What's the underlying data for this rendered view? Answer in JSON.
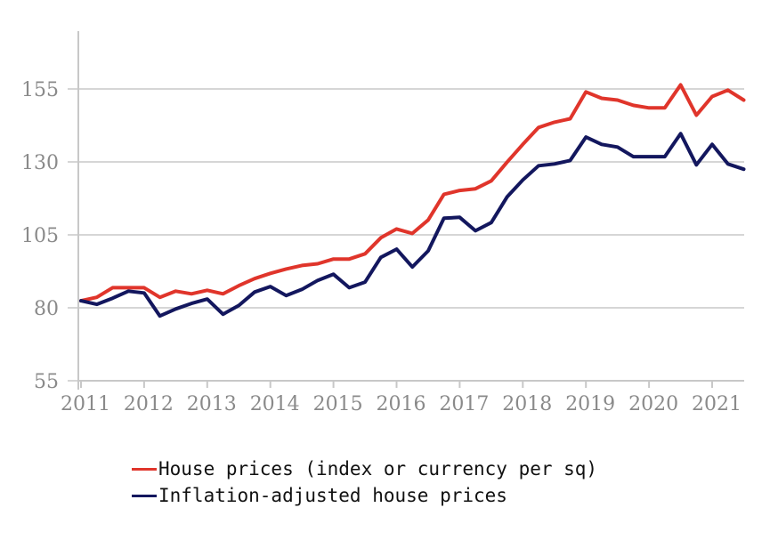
{
  "chart_data": {
    "type": "line",
    "title": "",
    "xlabel": "",
    "ylabel": "",
    "x_ticks": [
      "2011",
      "2012",
      "2013",
      "2014",
      "2015",
      "2016",
      "2017",
      "2018",
      "2019",
      "2020",
      "2021"
    ],
    "y_ticks": [
      55,
      80,
      105,
      130,
      155
    ],
    "xlim": [
      2011,
      2021.5
    ],
    "ylim": [
      55,
      174
    ],
    "grid": "horizontal",
    "legend_position": "bottom",
    "x": [
      2011.0,
      2011.25,
      2011.5,
      2011.75,
      2012.0,
      2012.25,
      2012.5,
      2012.75,
      2013.0,
      2013.25,
      2013.5,
      2013.75,
      2014.0,
      2014.25,
      2014.5,
      2014.75,
      2015.0,
      2015.25,
      2015.5,
      2015.75,
      2016.0,
      2016.25,
      2016.5,
      2016.75,
      2017.0,
      2017.25,
      2017.5,
      2017.75,
      2018.0,
      2018.25,
      2018.5,
      2018.75,
      2019.0,
      2019.25,
      2019.5,
      2019.75,
      2020.0,
      2020.25,
      2020.5,
      2020.75,
      2021.0,
      2021.25,
      2021.5
    ],
    "series": [
      {
        "name": "House prices (index or currency per sq)",
        "color": "#e0352b",
        "values": [
          82.4,
          83.6,
          86.9,
          86.9,
          86.9,
          83.6,
          85.7,
          84.8,
          86.0,
          84.8,
          87.6,
          90.0,
          91.8,
          93.3,
          94.5,
          95.1,
          96.7,
          96.7,
          98.5,
          104.0,
          107.0,
          105.5,
          110.1,
          118.9,
          120.2,
          120.8,
          123.5,
          129.9,
          136.0,
          141.8,
          143.6,
          144.8,
          154.0,
          151.8,
          151.2,
          149.4,
          148.5,
          148.5,
          156.4,
          146.0,
          152.4,
          154.6,
          151.2
        ]
      },
      {
        "name": "Inflation-adjusted house prices",
        "color": "#13175e",
        "values": [
          82.4,
          81.2,
          83.3,
          85.7,
          85.1,
          77.2,
          79.6,
          81.5,
          83.0,
          77.8,
          80.8,
          85.4,
          87.3,
          84.2,
          86.3,
          89.4,
          91.5,
          86.9,
          88.8,
          97.3,
          100.1,
          94.0,
          99.5,
          110.7,
          111.0,
          106.4,
          109.2,
          118.0,
          123.8,
          128.7,
          129.3,
          130.5,
          138.5,
          136.0,
          135.1,
          131.8,
          131.8,
          131.8,
          139.7,
          129.0,
          136.0,
          129.3,
          127.5
        ]
      }
    ]
  },
  "legend": {
    "items": [
      {
        "label": "House prices (index or currency per sq)",
        "color": "#e0352b"
      },
      {
        "label": "Inflation-adjusted house prices",
        "color": "#13175e"
      }
    ]
  }
}
